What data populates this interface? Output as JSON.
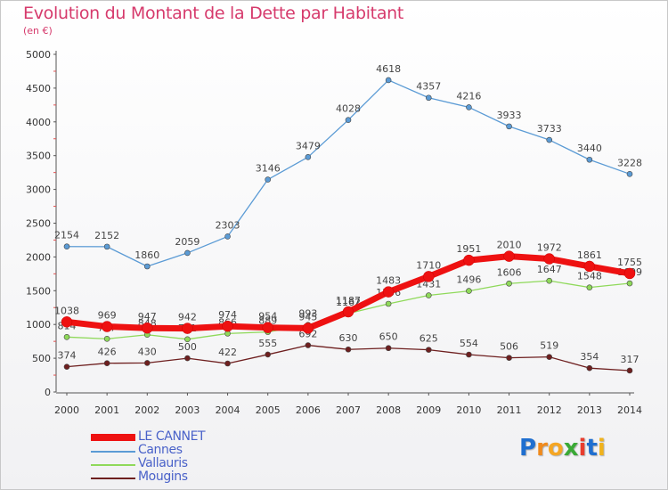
{
  "chart_data": {
    "type": "line",
    "title": "Evolution du Montant de la Dette par Habitant",
    "subtitle": "(en €)",
    "x": [
      2000,
      2001,
      2002,
      2003,
      2004,
      2005,
      2006,
      2007,
      2008,
      2009,
      2010,
      2011,
      2012,
      2013,
      2014
    ],
    "ylim": [
      0,
      5000
    ],
    "yticks": [
      0,
      500,
      1000,
      1500,
      2000,
      2500,
      3000,
      3500,
      4000,
      4500,
      5000
    ],
    "grid": false,
    "legend_position": "bottom-left",
    "series": [
      {
        "name": "Mougins",
        "color": "#6e1f1f",
        "values": [
          374,
          426,
          430,
          500,
          422,
          555,
          692,
          630,
          650,
          625,
          554,
          506,
          519,
          354,
          317
        ]
      },
      {
        "name": "Vallauris",
        "color": "#8fd95a",
        "values": [
          814,
          787,
          848,
          781,
          866,
          889,
          993,
          1162,
          1306,
          1431,
          1496,
          1606,
          1647,
          1548,
          1609
        ]
      },
      {
        "name": "Cannes",
        "color": "#5b9bd5",
        "values": [
          2154,
          2152,
          1860,
          2059,
          2303,
          3146,
          3479,
          4028,
          4618,
          4357,
          4216,
          3933,
          3733,
          3440,
          3228
        ]
      },
      {
        "name": "LE CANNET",
        "color": "#ee1111",
        "values": [
          1038,
          969,
          947,
          942,
          974,
          954,
          945,
          1187,
          1483,
          1710,
          1951,
          2010,
          1972,
          1861,
          1755
        ]
      }
    ],
    "legend": [
      "LE CANNET",
      "Cannes",
      "Vallauris",
      "Mougins"
    ]
  },
  "logo": {
    "letters": [
      "P",
      "r",
      "o",
      "x",
      "i",
      "t",
      "i"
    ],
    "colors": [
      "#1f6fd0",
      "#f08a1c",
      "#f5a623",
      "#3aa935",
      "#e83d2e",
      "#1f6fd0",
      "#f0b21c"
    ]
  }
}
